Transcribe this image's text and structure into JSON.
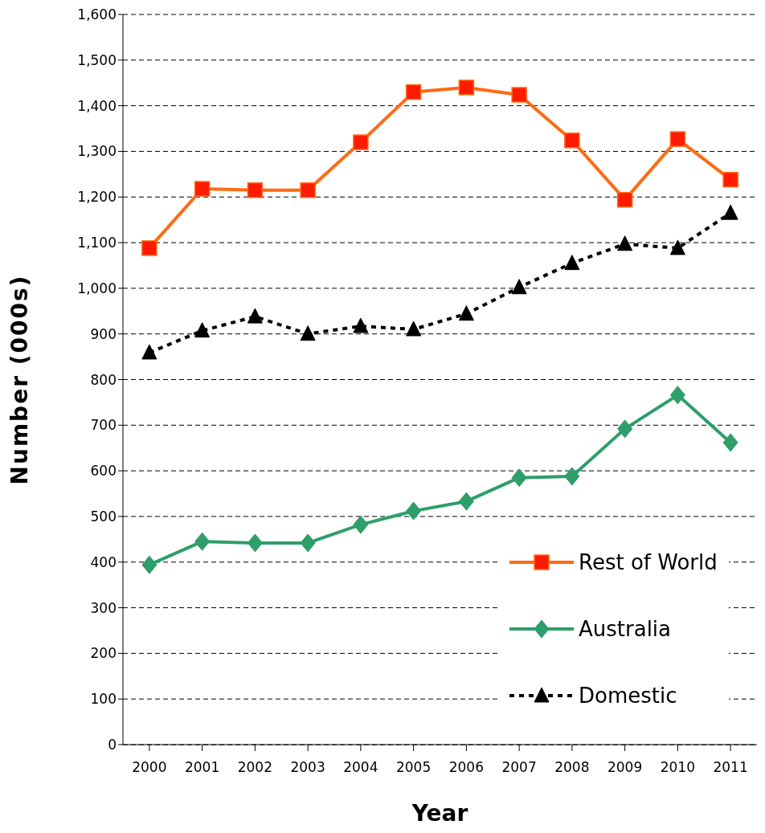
{
  "chart_data": {
    "type": "line",
    "xlabel": "Year",
    "ylabel": "Number (000s)",
    "categories": [
      "2000",
      "2001",
      "2002",
      "2003",
      "2004",
      "2005",
      "2006",
      "2007",
      "2008",
      "2009",
      "2010",
      "2011"
    ],
    "series": [
      {
        "name": "Rest of World",
        "color": "#ff6a13",
        "marker": "square",
        "line_style": "solid",
        "values": [
          1088,
          1218,
          1215,
          1215,
          1320,
          1430,
          1440,
          1424,
          1324,
          1194,
          1327,
          1238
        ]
      },
      {
        "name": "Australia",
        "color": "#2e9e6b",
        "marker": "diamond",
        "line_style": "solid",
        "values": [
          394,
          445,
          442,
          442,
          482,
          512,
          533,
          585,
          588,
          692,
          766,
          662
        ]
      },
      {
        "name": "Domestic",
        "color": "#000000",
        "marker": "triangle",
        "line_style": "dashed",
        "values": [
          859,
          907,
          938,
          900,
          917,
          910,
          944,
          1002,
          1055,
          1097,
          1088,
          1165
        ]
      }
    ],
    "ylim": [
      0,
      1600
    ],
    "yticks": [
      0,
      100,
      200,
      300,
      400,
      500,
      600,
      700,
      800,
      900,
      {
        "value": 1000,
        "label": "1,000"
      },
      {
        "value": 1100,
        "label": "1,100"
      },
      {
        "value": 1200,
        "label": "1,200"
      },
      {
        "value": 1300,
        "label": "1,300"
      },
      {
        "value": 1400,
        "label": "1,400"
      },
      {
        "value": 1500,
        "label": "1,500"
      },
      {
        "value": 1600,
        "label": "1,600"
      }
    ],
    "grid": "y",
    "legend": "bottom right"
  }
}
